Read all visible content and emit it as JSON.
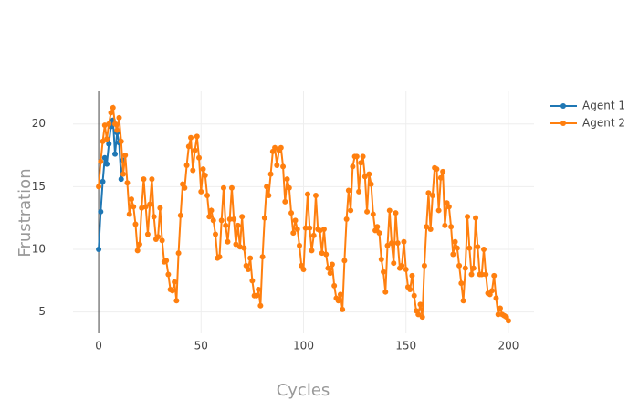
{
  "chart_data": {
    "type": "line",
    "x_label": "Cycles",
    "y_label": "Frustration",
    "xlim": [
      -12.5,
      212.5
    ],
    "ylim": [
      3.3,
      22.6
    ],
    "xticks": [
      0,
      50,
      100,
      150,
      200
    ],
    "yticks": [
      5,
      10,
      15,
      20
    ],
    "grid": true,
    "legend": "top-right",
    "series": [
      {
        "name": "Agent 1",
        "color": "#1f77b4",
        "x": [
          0,
          1,
          2,
          3,
          4,
          5,
          6,
          7,
          8,
          9,
          10,
          11,
          12
        ],
        "values": [
          10,
          13,
          15.4,
          17.3,
          16.8,
          18.4,
          19.8,
          20.3,
          17.6,
          19.3,
          18.5,
          15.6,
          17.1
        ]
      },
      {
        "name": "Agent 2",
        "color": "#ff7f0e",
        "x": [
          0,
          1,
          2,
          3,
          4,
          5,
          6,
          7,
          8,
          9,
          10,
          11,
          12,
          13,
          14,
          15,
          16,
          17,
          18,
          19,
          20,
          21,
          22,
          23,
          24,
          25,
          26,
          27,
          28,
          29,
          30,
          31,
          32,
          33,
          34,
          35,
          36,
          37,
          38,
          39,
          40,
          41,
          42,
          43,
          44,
          45,
          46,
          47,
          48,
          49,
          50,
          51,
          52,
          53,
          54,
          55,
          56,
          57,
          58,
          59,
          60,
          61,
          62,
          63,
          64,
          65,
          66,
          67,
          68,
          69,
          70,
          71,
          72,
          73,
          74,
          75,
          76,
          77,
          78,
          79,
          80,
          81,
          82,
          83,
          84,
          85,
          86,
          87,
          88,
          89,
          90,
          91,
          92,
          93,
          94,
          95,
          96,
          97,
          98,
          99,
          100,
          101,
          102,
          103,
          104,
          105,
          106,
          107,
          108,
          109,
          110,
          111,
          112,
          113,
          114,
          115,
          116,
          117,
          118,
          119,
          120,
          121,
          122,
          123,
          124,
          125,
          126,
          127,
          128,
          129,
          130,
          131,
          132,
          133,
          134,
          135,
          136,
          137,
          138,
          139,
          140,
          141,
          142,
          143,
          144,
          145,
          146,
          147,
          148,
          149,
          150,
          151,
          152,
          153,
          154,
          155,
          156,
          157,
          158,
          159,
          160,
          161,
          162,
          163,
          164,
          165,
          166,
          167,
          168,
          169,
          170,
          171,
          172,
          173,
          174,
          175,
          176,
          177,
          178,
          179,
          180,
          181,
          182,
          183,
          184,
          185,
          186,
          187,
          188,
          189,
          190,
          191,
          192,
          193,
          194,
          195,
          196,
          197,
          198,
          199,
          200
        ],
        "values": [
          15,
          17,
          18.6,
          19.9,
          18.8,
          20,
          20.9,
          21.3,
          20,
          19.5,
          20.5,
          18.6,
          16,
          17.5,
          15.3,
          12.8,
          14,
          13.4,
          12,
          9.9,
          10.4,
          13.3,
          15.6,
          13.4,
          11.2,
          13.6,
          15.6,
          12.6,
          10.8,
          11,
          13.3,
          10.7,
          9,
          9.1,
          8,
          6.8,
          6.7,
          7.4,
          5.9,
          9.7,
          12.7,
          15.2,
          14.9,
          16.7,
          18.2,
          18.9,
          16.3,
          17.9,
          19,
          17.3,
          14.6,
          16.4,
          15.9,
          14.3,
          12.6,
          13.1,
          12.3,
          11.2,
          9.3,
          9.4,
          12.3,
          14.9,
          11.9,
          10.6,
          12.4,
          14.9,
          12.4,
          10.4,
          11.9,
          10.2,
          12.6,
          10.1,
          8.7,
          8.4,
          9.3,
          7.5,
          6.3,
          6.3,
          6.8,
          5.5,
          9.4,
          12.5,
          15,
          14.3,
          16,
          17.8,
          18.1,
          16.7,
          17.9,
          18.1,
          16.6,
          13.8,
          15.6,
          14.9,
          12.9,
          11.3,
          12.3,
          11.6,
          10.3,
          8.7,
          8.4,
          11.7,
          14.4,
          11.7,
          9.9,
          11.1,
          14.3,
          11.6,
          11.5,
          9.7,
          11.6,
          9.6,
          8.5,
          8.1,
          8.8,
          7.1,
          6.1,
          5.9,
          6.4,
          5.2,
          9.1,
          12.4,
          14.7,
          13.1,
          16.6,
          17.4,
          17.4,
          14.6,
          16.9,
          17.4,
          15.8,
          13,
          16,
          15.2,
          12.8,
          11.5,
          11.8,
          11.3,
          9.2,
          8.2,
          6.6,
          10.3,
          13.1,
          10.5,
          8.9,
          12.9,
          10.5,
          8.5,
          8.7,
          10.6,
          8.4,
          7,
          6.8,
          7.9,
          6.3,
          5.1,
          4.8,
          5.6,
          4.6,
          8.7,
          11.8,
          14.5,
          11.6,
          14.3,
          16.5,
          16.4,
          13.1,
          15.7,
          16.2,
          11.9,
          13.7,
          13.4,
          11.8,
          9.6,
          10.6,
          10.1,
          8.7,
          7.3,
          5.9,
          8.5,
          12.6,
          10.1,
          8,
          8.5,
          12.5,
          10.2,
          8,
          8,
          10,
          8,
          6.5,
          6.4,
          6.7,
          7.9,
          6.1,
          4.8,
          5.3,
          4.8,
          4.7,
          4.6,
          4.3
        ]
      }
    ]
  }
}
